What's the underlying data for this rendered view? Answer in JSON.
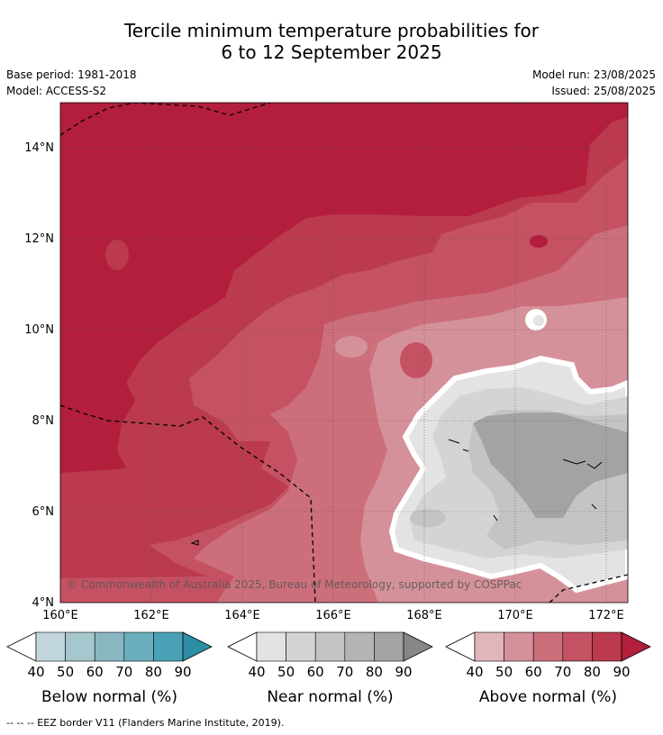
{
  "title": {
    "line1": "Tercile minimum temperature probabilities for",
    "line2": "6 to 12 September 2025"
  },
  "meta": {
    "base_period": "Base period: 1981-2018",
    "model": "Model: ACCESS-S2",
    "model_run": "Model run: 23/08/2025",
    "issued": "Issued: 25/08/2025"
  },
  "map": {
    "lat_labels": [
      "14°N",
      "12°N",
      "10°N",
      "8°N",
      "6°N",
      "4°N"
    ],
    "lon_labels": [
      "160°E",
      "162°E",
      "164°E",
      "166°E",
      "168°E",
      "170°E",
      "172°E"
    ],
    "copyright": "© Commonwealth of Australia 2025, Bureau of Meteorology, supported by COSPPac",
    "extent": {
      "lon_min": 160,
      "lon_max": 172.5,
      "lat_min": 4,
      "lat_max": 15
    }
  },
  "legends": [
    {
      "label": "Below normal (%)",
      "ticks": [
        "40",
        "50",
        "60",
        "70",
        "80",
        "90"
      ],
      "colors": [
        "#c0d5dc",
        "#a6c7cd",
        "#88b7c2",
        "#6baebd",
        "#4aa0b4",
        "#2b8ea5"
      ]
    },
    {
      "label": "Near normal (%)",
      "ticks": [
        "40",
        "50",
        "60",
        "70",
        "80",
        "90"
      ],
      "colors": [
        "#e3e3e3",
        "#d4d4d4",
        "#c4c4c4",
        "#b4b4b4",
        "#a3a3a3",
        "#878787"
      ]
    },
    {
      "label": "Above normal (%)",
      "ticks": [
        "40",
        "50",
        "60",
        "70",
        "80",
        "90"
      ],
      "colors": [
        "#e0b6bb",
        "#d5919a",
        "#cc6f7b",
        "#c45262",
        "#bb3a4d",
        "#b21e3b"
      ]
    }
  ],
  "footer": "--  --  -- EEZ border V11 (Flanders Marine Institute, 2019)."
}
